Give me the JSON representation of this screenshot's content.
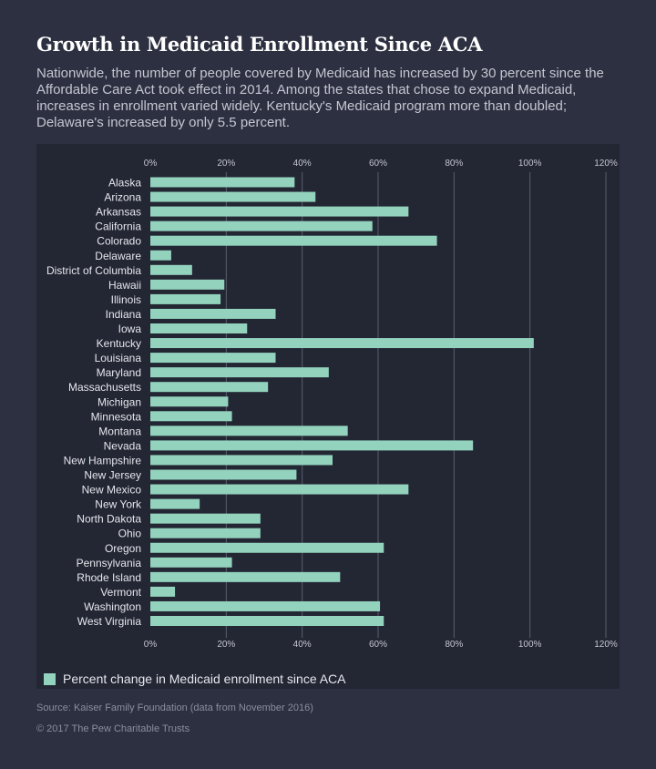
{
  "header": {
    "title": "Growth in Medicaid Enrollment Since ACA",
    "subtitle": "Nationwide, the number of people covered by Medicaid has increased by 30 percent since the Affordable Care Act took effect in 2014. Among the states that chose to expand Medicaid, increases in enrollment varied widely. Kentucky's Medicaid program more than doubled; Delaware's increased by only 5.5 percent."
  },
  "legend": {
    "label": "Percent change in Medicaid enrollment since ACA"
  },
  "footer": {
    "source": "Source: Kaiser Family Foundation (data from November 2016)",
    "copyright": "© 2017 The Pew Charitable Trusts"
  },
  "colors": {
    "background": "#2d3040",
    "panel": "#232633",
    "bar": "#93d2bd",
    "gridline": "#5b5e6e"
  },
  "chart_data": {
    "type": "bar",
    "orientation": "horizontal",
    "xlim": [
      0,
      120
    ],
    "xticks": [
      "0%",
      "20%",
      "40%",
      "60%",
      "80%",
      "100%",
      "120%"
    ],
    "xtick_values": [
      0,
      20,
      40,
      60,
      80,
      100,
      120
    ],
    "x_axis_labels": "top and bottom",
    "grid": true,
    "legend_position": "bottom-left",
    "categories": [
      "Alaska",
      "Arizona",
      "Arkansas",
      "California",
      "Colorado",
      "Delaware",
      "District of Columbia",
      "Hawaii",
      "Illinois",
      "Indiana",
      "Iowa",
      "Kentucky",
      "Louisiana",
      "Maryland",
      "Massachusetts",
      "Michigan",
      "Minnesota",
      "Montana",
      "Nevada",
      "New Hampshire",
      "New Jersey",
      "New Mexico",
      "New York",
      "North Dakota",
      "Ohio",
      "Oregon",
      "Pennsylvania",
      "Rhode Island",
      "Vermont",
      "Washington",
      "West Virginia"
    ],
    "series": [
      {
        "name": "Percent change in Medicaid enrollment since ACA",
        "values": [
          38,
          43.5,
          68,
          58.5,
          75.5,
          5.5,
          11,
          19.5,
          18.5,
          33,
          25.5,
          101,
          33,
          47,
          31,
          20.5,
          21.5,
          52,
          85,
          48,
          38.5,
          68,
          13,
          29,
          29,
          61.5,
          21.5,
          50,
          6.5,
          60.5,
          61.5
        ]
      }
    ]
  }
}
